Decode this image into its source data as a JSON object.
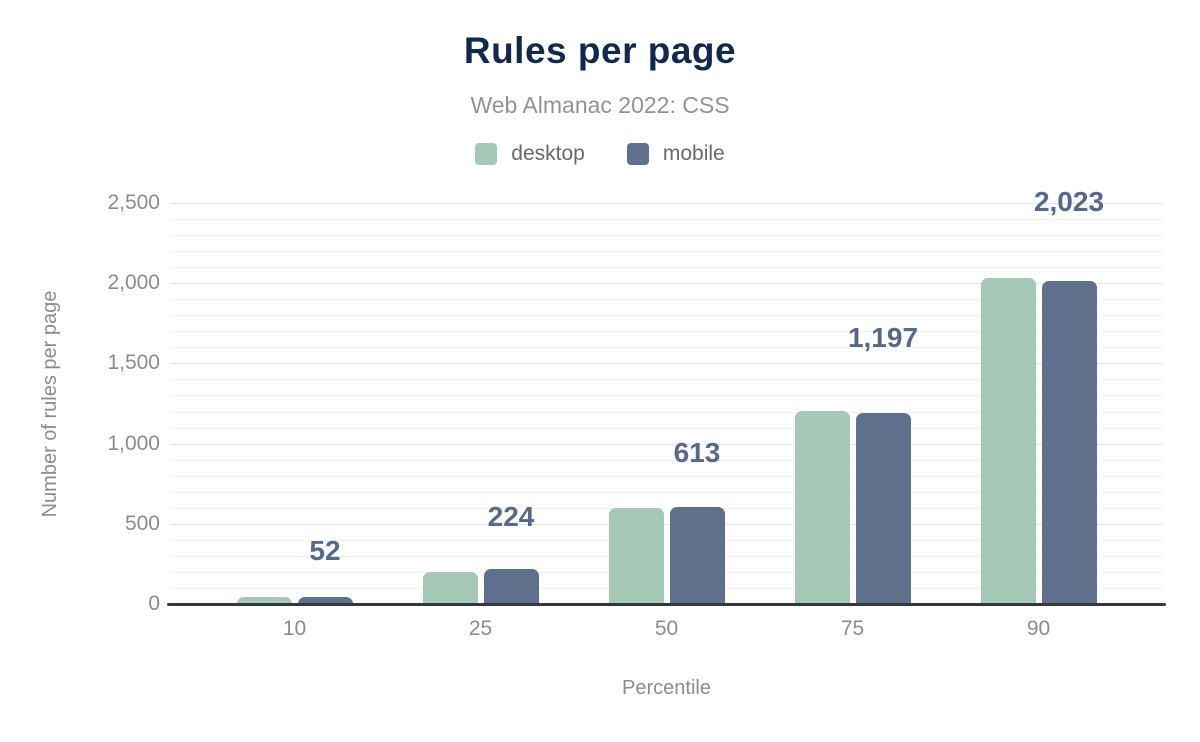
{
  "figure": {
    "title": "Rules per page",
    "subtitle": "Web Almanac 2022: CSS"
  },
  "legend": [
    {
      "label": "desktop",
      "color": "#a6c8b7"
    },
    {
      "label": "mobile",
      "color": "#5f708c"
    }
  ],
  "chart_data": {
    "type": "bar",
    "title": "Rules per page",
    "subtitle": "Web Almanac 2022: CSS",
    "xlabel": "Percentile",
    "ylabel": "Number of rules per page",
    "categories": [
      "10",
      "25",
      "50",
      "75",
      "90"
    ],
    "series": [
      {
        "name": "desktop",
        "color": "#a6c8b7",
        "values": [
          48,
          203,
          606,
          1210,
          2040
        ]
      },
      {
        "name": "mobile",
        "color": "#5f708c",
        "values": [
          52,
          224,
          613,
          1197,
          2023
        ],
        "value_labels": [
          "52",
          "224",
          "613",
          "1,197",
          "2,023"
        ]
      }
    ],
    "ylim": [
      0,
      2500
    ],
    "ytick_values": [
      0,
      500,
      1000,
      1500,
      2000,
      2500
    ],
    "ytick_labels": [
      "0",
      "500",
      "1,000",
      "1,500",
      "2,000",
      "2,500"
    ],
    "grid": {
      "minor_step": 100,
      "major_step": 500
    },
    "legend_position": "top",
    "notes": {
      "desktop_values_estimated_from_pixels": true
    },
    "colors": {
      "title": "#12294e",
      "subtitle": "#919396",
      "value_label": "#56688b",
      "tick_label": "#8a8c8f",
      "axis_line": "#33383d",
      "grid_major": "#e6e6e6",
      "grid_minor": "#f3f3f3"
    }
  }
}
